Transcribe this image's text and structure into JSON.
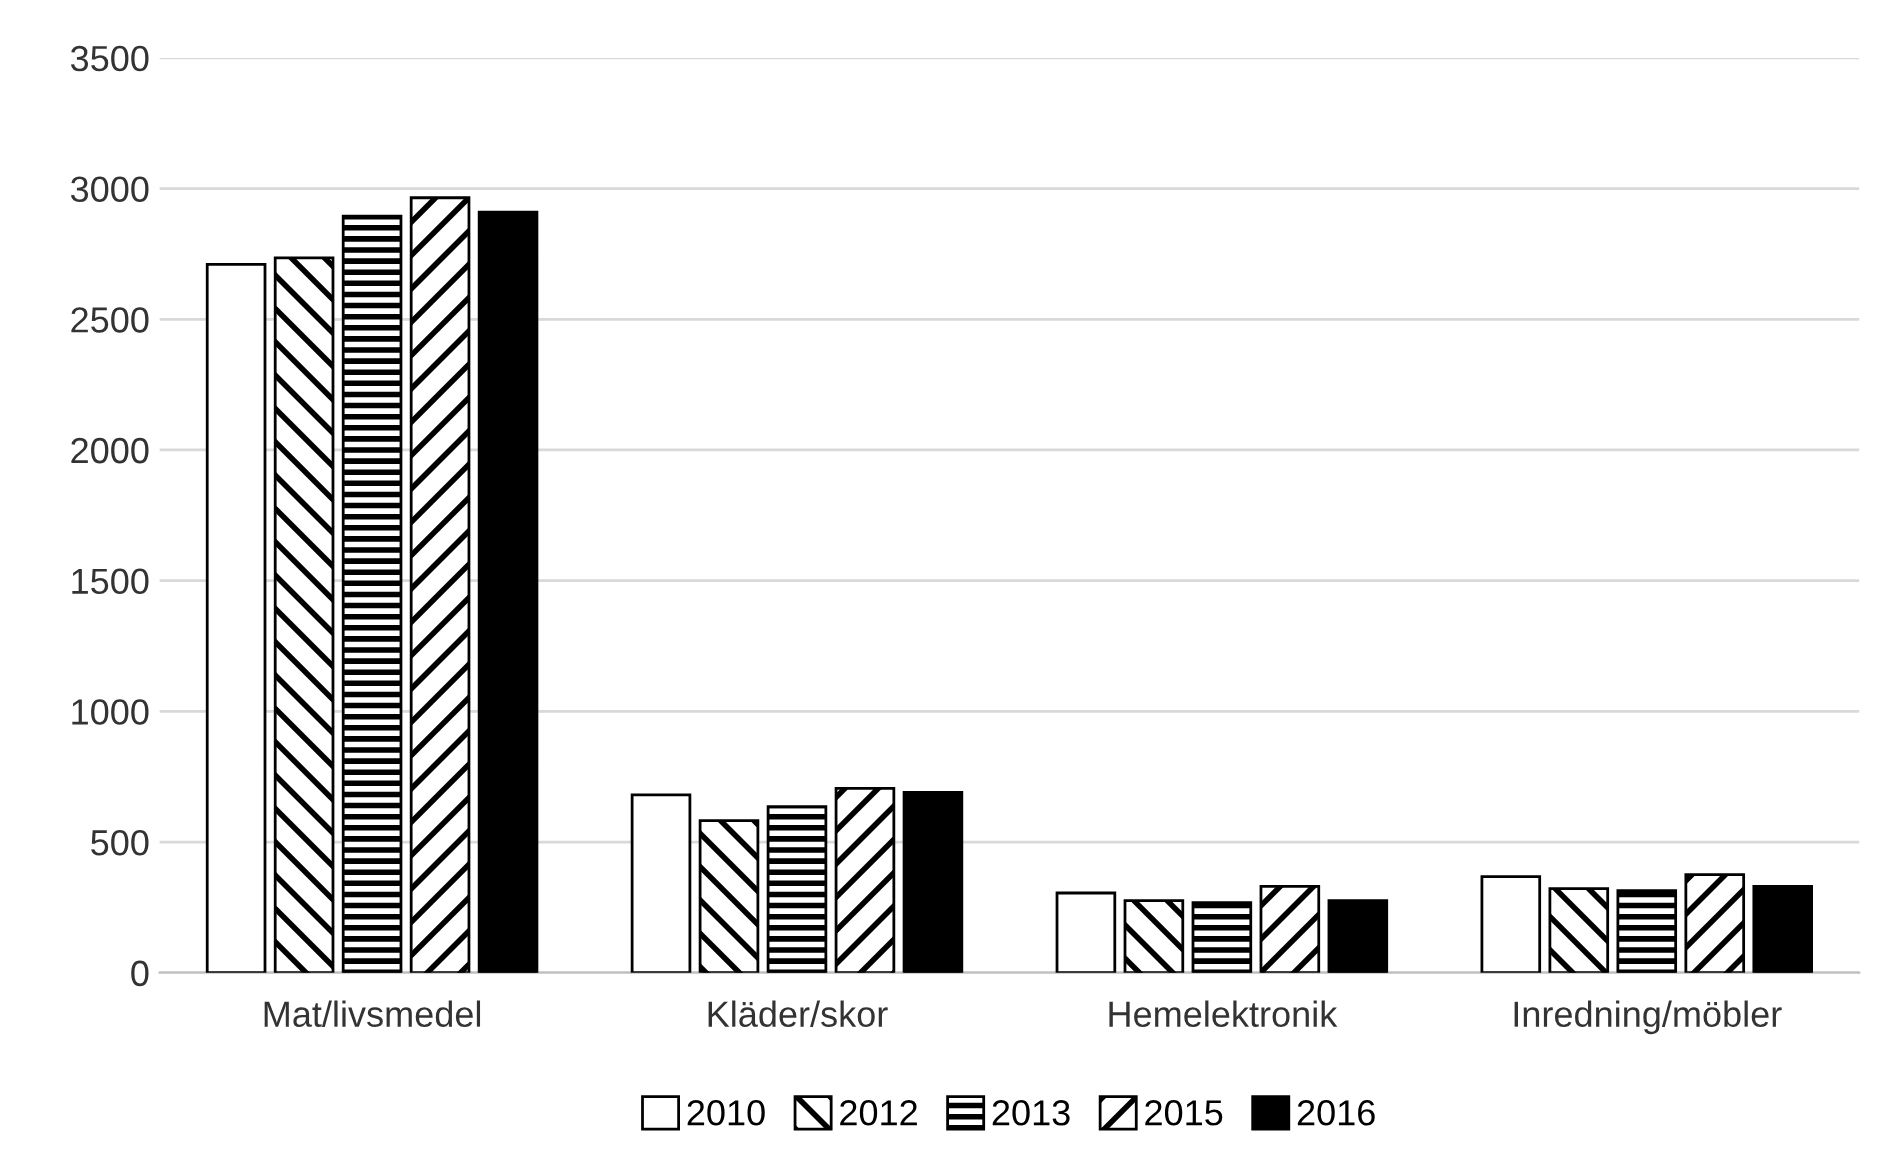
{
  "chart_data": {
    "type": "bar",
    "categories": [
      "Mat/livsmedel",
      "Kläder/skor",
      "Hemelektronik",
      "Inredning/möbler"
    ],
    "series": [
      {
        "name": "2010",
        "color": "#ffffff",
        "values": [
          2710,
          680,
          305,
          368
        ]
      },
      {
        "name": "2012",
        "color": "#000000",
        "values": [
          2735,
          582,
          276,
          322
        ]
      },
      {
        "name": "2013",
        "color": "#000000",
        "values": [
          2895,
          635,
          268,
          314
        ]
      },
      {
        "name": "2015",
        "color": "#000000",
        "values": [
          2965,
          705,
          330,
          375
        ]
      },
      {
        "name": "2016",
        "color": "#000000",
        "values": [
          2910,
          690,
          276,
          330
        ]
      }
    ],
    "ylim": [
      0,
      3500
    ],
    "yticks": [
      0,
      500,
      1000,
      1500,
      2000,
      2500,
      3000,
      3500
    ],
    "grid": "y",
    "legend": "bottom"
  }
}
